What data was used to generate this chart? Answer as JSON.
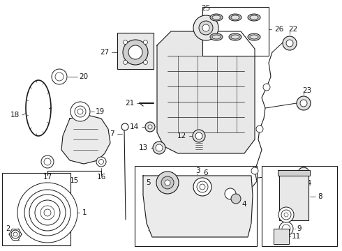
{
  "bg_color": "#ffffff",
  "line_color": "#1a1a1a",
  "fig_w": 4.9,
  "fig_h": 3.6,
  "dpi": 100
}
